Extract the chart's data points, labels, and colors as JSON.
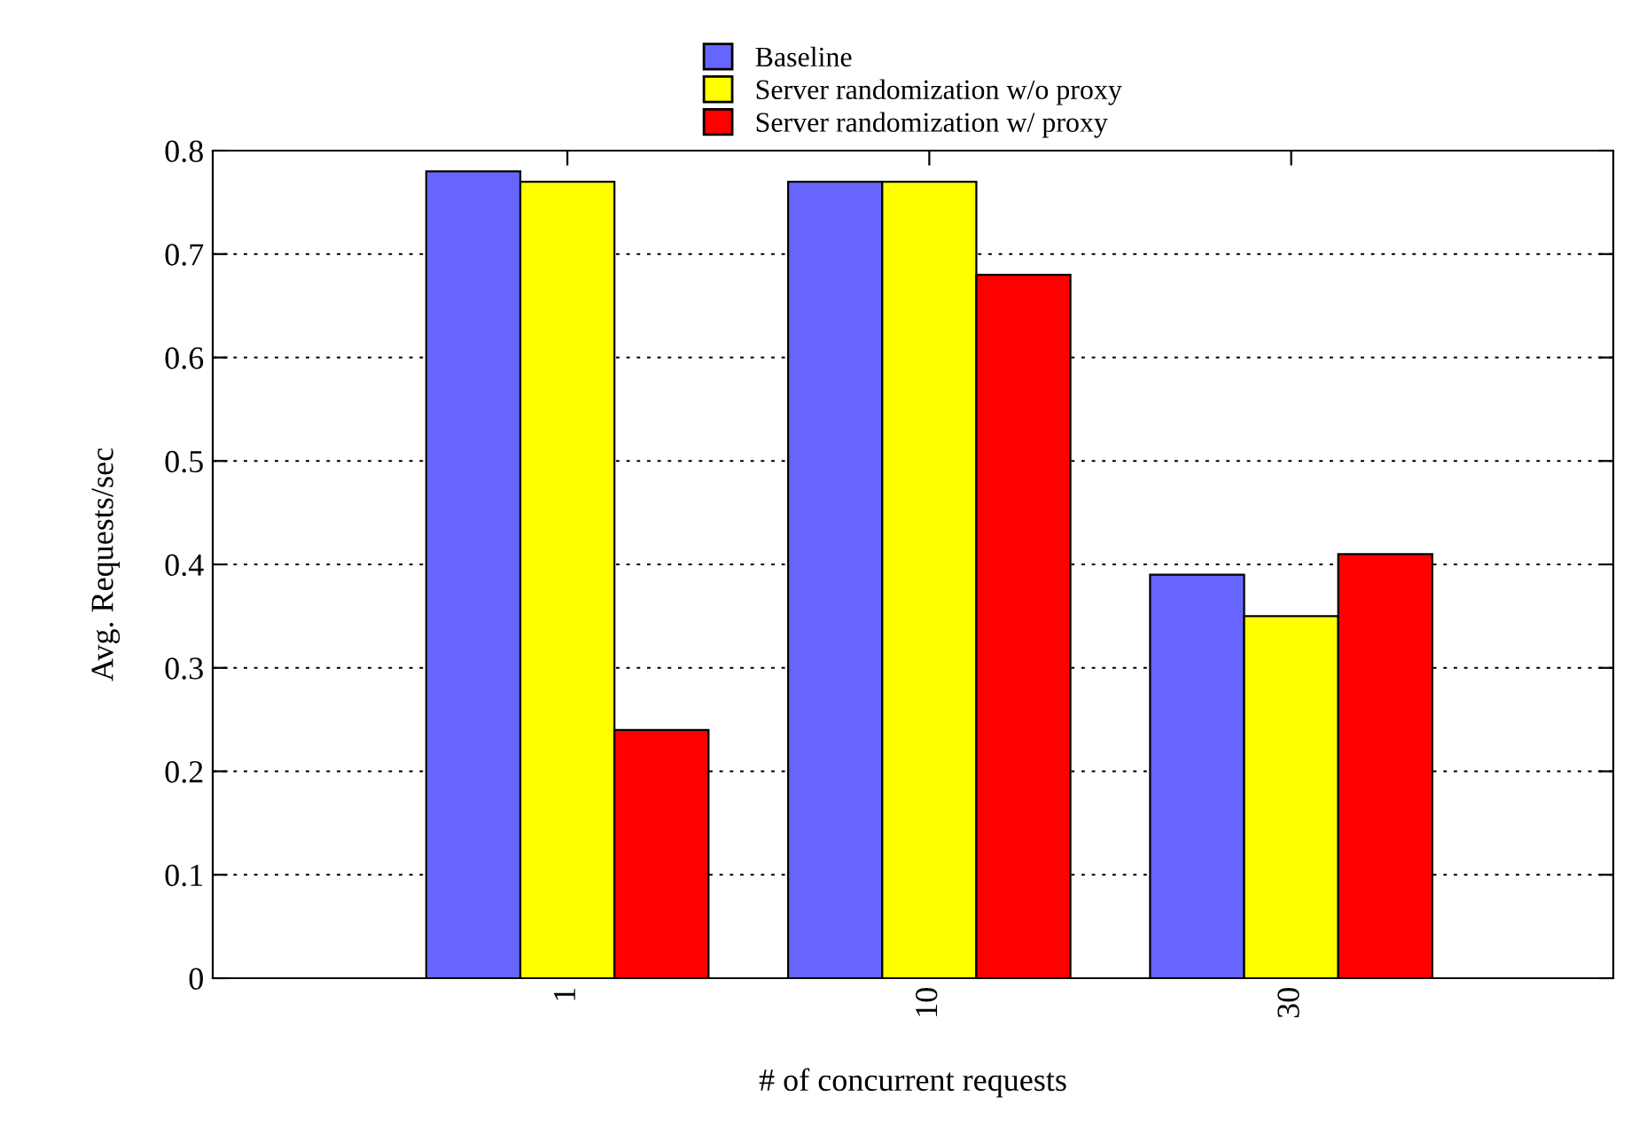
{
  "chart_data": {
    "type": "bar",
    "xlabel": "# of concurrent requests",
    "ylabel": "Avg. Requests/sec",
    "categories": [
      "1",
      "10",
      "30"
    ],
    "series": [
      {
        "name": "Baseline",
        "color": "#6666ff",
        "values": [
          0.78,
          0.77,
          0.39
        ]
      },
      {
        "name": "Server randomization w/o proxy",
        "color": "#ffff00",
        "values": [
          0.77,
          0.77,
          0.35
        ]
      },
      {
        "name": "Server randomization w/ proxy",
        "color": "#ff0000",
        "values": [
          0.24,
          0.68,
          0.41
        ]
      }
    ],
    "ylim": [
      0,
      0.8
    ],
    "yticks": [
      0,
      0.1,
      0.2,
      0.3,
      0.4,
      0.5,
      0.6,
      0.7,
      0.8
    ],
    "grid": "y",
    "legend": "top"
  }
}
